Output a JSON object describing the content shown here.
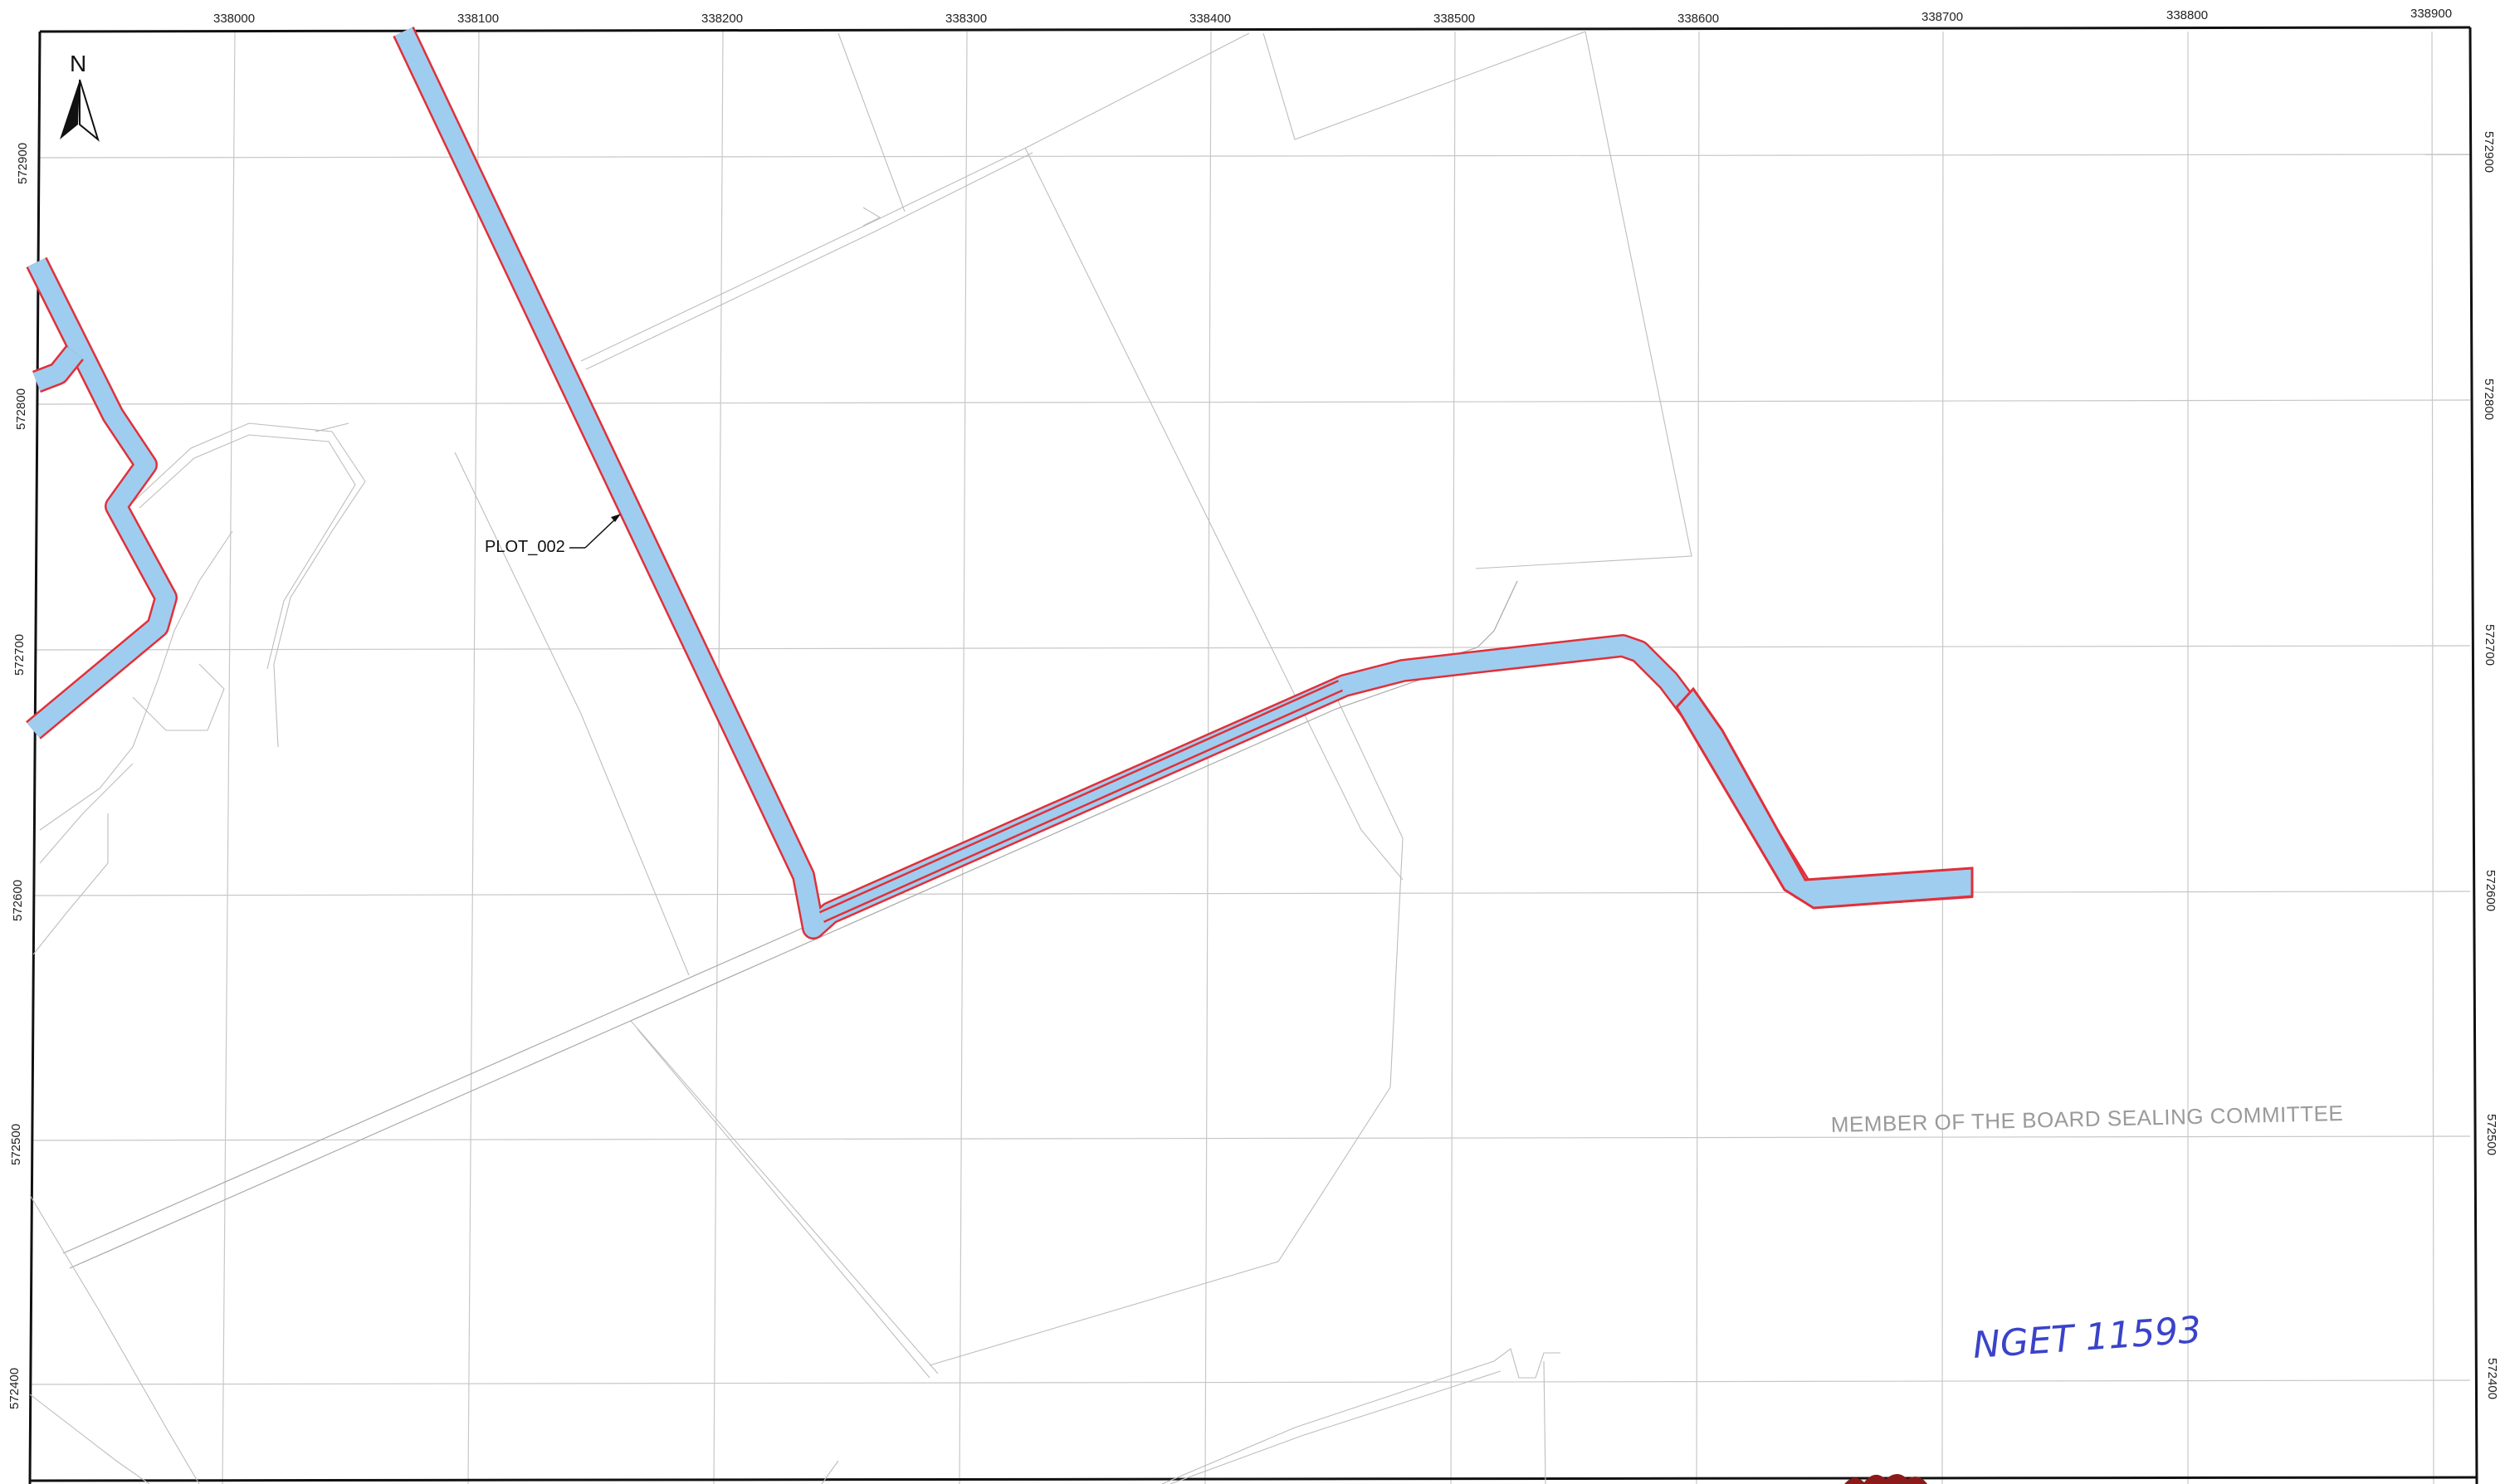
{
  "map": {
    "north_label": "N",
    "easting_ticks": [
      "338000",
      "338100",
      "338200",
      "338300",
      "338400",
      "338500",
      "338600",
      "338700",
      "338800",
      "338900"
    ],
    "northing_ticks": [
      "572900",
      "572800",
      "572700",
      "572600",
      "572500",
      "572400"
    ],
    "plot_label": "PLOT_002",
    "sealing_text": "MEMBER OF THE BOARD SEALING COMMITTEE",
    "handwritten_ref": "NGET 11593",
    "colors": {
      "corridor_fill": "#9fcdef",
      "corridor_outline": "#e0303a",
      "grid": "#c7c7c7",
      "seal": "#8b1a1a",
      "handwriting": "#3a43c9"
    }
  }
}
